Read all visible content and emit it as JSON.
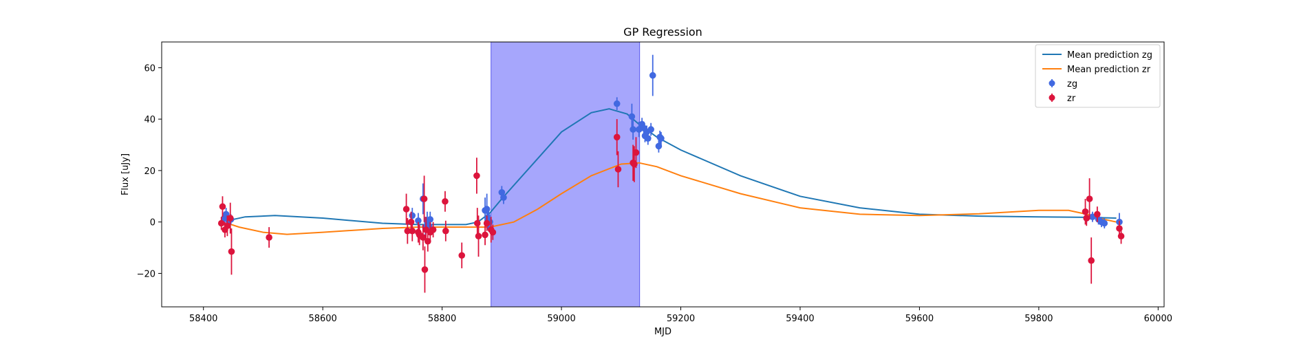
{
  "chart_data": {
    "type": "scatter",
    "title": "GP Regression",
    "xlabel": "MJD",
    "ylabel": "Flux [uJy]",
    "xlim": [
      58330,
      60010
    ],
    "ylim": [
      -33,
      70
    ],
    "x_ticks": [
      58400,
      58600,
      58800,
      59000,
      59200,
      59400,
      59600,
      59800,
      60000
    ],
    "y_ticks": [
      -20,
      0,
      20,
      40,
      60
    ],
    "legend_position": "top-right",
    "highlight_span": {
      "x_start": 58882,
      "x_end": 59131,
      "color": "#a6a6fc"
    },
    "legend": [
      "Mean prediction zg",
      "Mean prediction zr",
      "zg",
      "zr"
    ],
    "lines": [
      {
        "name": "Mean prediction zg",
        "color": "#1f77b4",
        "x": [
          58440,
          58470,
          58520,
          58600,
          58700,
          58760,
          58800,
          58840,
          58860,
          58880,
          58900,
          58950,
          59000,
          59050,
          59080,
          59110,
          59130,
          59160,
          59200,
          59300,
          59400,
          59500,
          59600,
          59700,
          59800,
          59880,
          59930
        ],
        "y": [
          0.5,
          2,
          2.5,
          1.5,
          -0.5,
          -1,
          -1,
          -1,
          0,
          3.5,
          9,
          22,
          35,
          42.5,
          44,
          42,
          38,
          33,
          28,
          18,
          10,
          5.5,
          3,
          2.3,
          2,
          1.8,
          1.5
        ]
      },
      {
        "name": "Mean prediction zr",
        "color": "#ff7f0e",
        "x": [
          58440,
          58460,
          58500,
          58540,
          58600,
          58700,
          58760,
          58800,
          58850,
          58880,
          58920,
          58960,
          59000,
          59050,
          59100,
          59130,
          59160,
          59200,
          59300,
          59400,
          59500,
          59600,
          59700,
          59800,
          59850,
          59880,
          59910,
          59930
        ],
        "y": [
          -0.5,
          -2,
          -4,
          -4.8,
          -4,
          -2.5,
          -2,
          -2,
          -2,
          -2,
          0,
          5,
          11,
          18,
          22.5,
          23,
          21.5,
          18,
          11,
          5.5,
          3,
          2.5,
          3.2,
          4.5,
          4.5,
          3,
          1,
          0
        ]
      }
    ],
    "series": [
      {
        "name": "zg",
        "color": "#4169e1",
        "points": [
          [
            58435,
            1.5,
            2.5
          ],
          [
            58438,
            3,
            2.5
          ],
          [
            58442,
            0.5,
            2
          ],
          [
            58446,
            1,
            2
          ],
          [
            58750,
            2.5,
            3
          ],
          [
            58760,
            0.5,
            3
          ],
          [
            58768,
            9,
            6
          ],
          [
            58772,
            -2,
            4
          ],
          [
            58775,
            0,
            4
          ],
          [
            58778,
            -1.5,
            3
          ],
          [
            58780,
            1,
            3
          ],
          [
            58872,
            4.5,
            5
          ],
          [
            58875,
            5,
            6
          ],
          [
            58877,
            1,
            4
          ],
          [
            58878,
            0.5,
            4
          ],
          [
            58880,
            0,
            3
          ],
          [
            58900,
            11.5,
            2.5
          ],
          [
            58903,
            9.5,
            2.5
          ],
          [
            59093,
            46,
            2.5
          ],
          [
            59118,
            41,
            5
          ],
          [
            59120,
            36,
            4
          ],
          [
            59130,
            36,
            3
          ],
          [
            59135,
            38,
            2.5
          ],
          [
            59138,
            36.5,
            2.5
          ],
          [
            59140,
            33.5,
            2.5
          ],
          [
            59143,
            35,
            2.5
          ],
          [
            59145,
            32.5,
            2.5
          ],
          [
            59150,
            36,
            2.5
          ],
          [
            59153,
            57,
            8
          ],
          [
            59163,
            29.5,
            2.5
          ],
          [
            59165,
            33,
            2.5
          ],
          [
            59167,
            32.5,
            2.5
          ],
          [
            59880,
            1.5,
            2
          ],
          [
            59890,
            2,
            2
          ],
          [
            59900,
            1,
            2
          ],
          [
            59905,
            0,
            2
          ],
          [
            59910,
            -0.5,
            2
          ],
          [
            59935,
            0,
            3.5
          ]
        ]
      },
      {
        "name": "zr",
        "color": "#dc143c",
        "points": [
          [
            58430,
            -0.5,
            2.5
          ],
          [
            58432,
            6,
            4
          ],
          [
            58436,
            -3,
            3
          ],
          [
            58440,
            -1.5,
            4
          ],
          [
            58445,
            1.5,
            6
          ],
          [
            58447,
            -11.5,
            9
          ],
          [
            58510,
            -6,
            4
          ],
          [
            58740,
            5,
            6
          ],
          [
            58742,
            -3.5,
            5
          ],
          [
            58748,
            0,
            4
          ],
          [
            58750,
            -3.5,
            4
          ],
          [
            58760,
            -4,
            4
          ],
          [
            58762,
            -5,
            4
          ],
          [
            58768,
            -6,
            5
          ],
          [
            58770,
            9,
            9
          ],
          [
            58771,
            -18.5,
            9
          ],
          [
            58773,
            -3,
            5
          ],
          [
            58776,
            -7.5,
            4
          ],
          [
            58780,
            -4,
            4
          ],
          [
            58785,
            -3,
            3
          ],
          [
            58805,
            8,
            4
          ],
          [
            58806,
            -3.5,
            4
          ],
          [
            58833,
            -13,
            5
          ],
          [
            58858,
            18,
            7
          ],
          [
            58859,
            -0.5,
            6
          ],
          [
            58861,
            -5.5,
            8
          ],
          [
            58872,
            -5,
            4
          ],
          [
            58875,
            -0.5,
            3
          ],
          [
            58882,
            -3,
            5
          ],
          [
            58885,
            -4,
            3
          ],
          [
            59093,
            33,
            7
          ],
          [
            59095,
            20.5,
            7
          ],
          [
            59120,
            23,
            7
          ],
          [
            59122,
            22.5,
            7
          ],
          [
            59125,
            27,
            6
          ],
          [
            59878,
            4,
            5
          ],
          [
            59880,
            1.5,
            3
          ],
          [
            59885,
            9,
            8
          ],
          [
            59888,
            -15,
            9
          ],
          [
            59898,
            3,
            3
          ],
          [
            59935,
            -2.5,
            3
          ],
          [
            59938,
            -5.5,
            3
          ]
        ]
      }
    ]
  }
}
